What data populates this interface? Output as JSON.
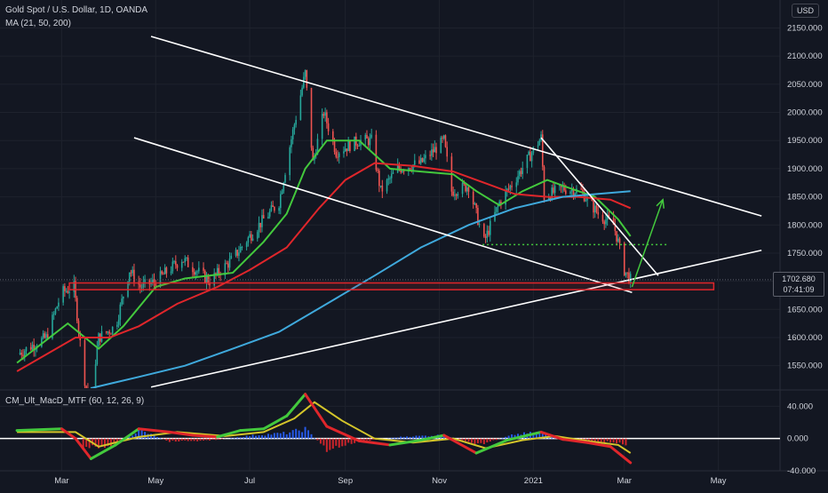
{
  "legend": {
    "symbol": "Gold Spot / U.S. Dollar, 1D, OANDA",
    "ma": "MA (21, 50, 200)",
    "macd": "CM_Ult_MacD_MTF (60, 12, 26, 9)"
  },
  "currency_button": "USD",
  "price_tag": {
    "price": "1702.680",
    "countdown": "07:41:09"
  },
  "colors": {
    "background": "#131722",
    "candle_up": "#26a69a",
    "candle_down": "#ef5350",
    "ma21": "#43c93d",
    "ma50": "#e0262b",
    "ma200": "#3fa9dc",
    "trendline": "#ffffff",
    "support_box": "#e0262b",
    "arrow": "#43c93d"
  },
  "chart_data": [
    {
      "type": "candlestick",
      "series": [
        {
          "name": "MA 21"
        },
        {
          "name": "MA 50"
        },
        {
          "name": "MA 200"
        }
      ],
      "x": [
        "Mar",
        "May",
        "Jul",
        "Sep",
        "Nov",
        "2021",
        "Mar",
        "May"
      ],
      "ylim": [
        1510,
        2165
      ],
      "yticks": [
        1550,
        1600,
        1650,
        1700,
        1750,
        1800,
        1850,
        1900,
        1950,
        2000,
        2050,
        2100,
        2150
      ],
      "ytick_labels": [
        "1550.000",
        "1600.000",
        "1650.000",
        "1700.000",
        "1750.000",
        "1800.000",
        "1850.000",
        "1900.000",
        "1950.000",
        "2000.000",
        "2050.000",
        "2100.000",
        "2150.000"
      ],
      "last_price": 1702.68,
      "price_path": [
        [
          "2020-02-01",
          1570
        ],
        [
          "2020-02-20",
          1600
        ],
        [
          "2020-03-01",
          1680
        ],
        [
          "2020-03-09",
          1690
        ],
        [
          "2020-03-15",
          1540
        ],
        [
          "2020-03-19",
          1480
        ],
        [
          "2020-03-25",
          1600
        ],
        [
          "2020-04-05",
          1620
        ],
        [
          "2020-04-14",
          1720
        ],
        [
          "2020-04-21",
          1690
        ],
        [
          "2020-05-01",
          1700
        ],
        [
          "2020-05-18",
          1740
        ],
        [
          "2020-06-05",
          1700
        ],
        [
          "2020-06-20",
          1740
        ],
        [
          "2020-07-01",
          1780
        ],
        [
          "2020-07-10",
          1810
        ],
        [
          "2020-07-20",
          1840
        ],
        [
          "2020-07-27",
          1940
        ],
        [
          "2020-08-06",
          2070
        ],
        [
          "2020-08-11",
          1910
        ],
        [
          "2020-08-18",
          2000
        ],
        [
          "2020-08-26",
          1930
        ],
        [
          "2020-09-10",
          1950
        ],
        [
          "2020-09-18",
          1950
        ],
        [
          "2020-09-24",
          1860
        ],
        [
          "2020-10-05",
          1900
        ],
        [
          "2020-10-20",
          1910
        ],
        [
          "2020-11-04",
          1950
        ],
        [
          "2020-11-09",
          1860
        ],
        [
          "2020-11-20",
          1870
        ],
        [
          "2020-11-30",
          1770
        ],
        [
          "2020-12-10",
          1840
        ],
        [
          "2020-12-20",
          1880
        ],
        [
          "2021-01-06",
          1955
        ],
        [
          "2021-01-08",
          1850
        ],
        [
          "2021-01-20",
          1865
        ],
        [
          "2021-02-01",
          1860
        ],
        [
          "2021-02-12",
          1820
        ],
        [
          "2021-02-22",
          1800
        ],
        [
          "2021-02-25",
          1770
        ],
        [
          "2021-03-01",
          1720
        ],
        [
          "2021-03-05",
          1702.68
        ]
      ],
      "moving_averages": [
        {
          "name": "MA 21",
          "color": "#43c93d",
          "points": [
            [
              "2020-02-01",
              1555
            ],
            [
              "2020-03-05",
              1625
            ],
            [
              "2020-03-25",
              1580
            ],
            [
              "2020-04-10",
              1620
            ],
            [
              "2020-05-01",
              1690
            ],
            [
              "2020-05-20",
              1705
            ],
            [
              "2020-06-20",
              1715
            ],
            [
              "2020-07-10",
              1770
            ],
            [
              "2020-07-25",
              1820
            ],
            [
              "2020-08-06",
              1900
            ],
            [
              "2020-08-20",
              1950
            ],
            [
              "2020-09-10",
              1950
            ],
            [
              "2020-09-30",
              1900
            ],
            [
              "2020-10-20",
              1895
            ],
            [
              "2020-11-10",
              1890
            ],
            [
              "2020-11-25",
              1860
            ],
            [
              "2020-12-10",
              1835
            ],
            [
              "2020-12-25",
              1860
            ],
            [
              "2021-01-10",
              1880
            ],
            [
              "2021-01-25",
              1865
            ],
            [
              "2021-02-10",
              1850
            ],
            [
              "2021-02-25",
              1810
            ],
            [
              "2021-03-05",
              1780
            ]
          ]
        },
        {
          "name": "MA 50",
          "color": "#e0262b",
          "points": [
            [
              "2020-02-01",
              1540
            ],
            [
              "2020-03-10",
              1600
            ],
            [
              "2020-04-01",
              1600
            ],
            [
              "2020-04-20",
              1620
            ],
            [
              "2020-05-15",
              1660
            ],
            [
              "2020-06-10",
              1690
            ],
            [
              "2020-07-01",
              1720
            ],
            [
              "2020-07-25",
              1760
            ],
            [
              "2020-08-15",
              1830
            ],
            [
              "2020-09-01",
              1880
            ],
            [
              "2020-09-20",
              1910
            ],
            [
              "2020-10-15",
              1905
            ],
            [
              "2020-11-10",
              1895
            ],
            [
              "2020-11-30",
              1875
            ],
            [
              "2020-12-20",
              1855
            ],
            [
              "2021-01-10",
              1850
            ],
            [
              "2021-01-30",
              1850
            ],
            [
              "2021-02-20",
              1845
            ],
            [
              "2021-03-05",
              1830
            ]
          ]
        },
        {
          "name": "MA 200",
          "color": "#3fa9dc",
          "points": [
            [
              "2020-03-20",
              1510
            ],
            [
              "2020-04-20",
              1530
            ],
            [
              "2020-05-20",
              1550
            ],
            [
              "2020-06-20",
              1580
            ],
            [
              "2020-07-20",
              1610
            ],
            [
              "2020-08-20",
              1660
            ],
            [
              "2020-09-20",
              1710
            ],
            [
              "2020-10-20",
              1760
            ],
            [
              "2020-11-20",
              1800
            ],
            [
              "2020-12-20",
              1830
            ],
            [
              "2021-01-20",
              1850
            ],
            [
              "2021-02-20",
              1857
            ],
            [
              "2021-03-05",
              1860
            ]
          ]
        }
      ],
      "drawings": {
        "trendlines": [
          [
            [
              "2020-04-28",
              2135
            ],
            [
              "2021-05-29",
              1816
            ]
          ],
          [
            [
              "2020-04-17",
              1955
            ],
            [
              "2021-03-06",
              1680
            ]
          ],
          [
            [
              "2020-04-28",
              1512
            ],
            [
              "2021-05-29",
              1755
            ]
          ],
          [
            [
              "2021-01-06",
              1955
            ],
            [
              "2021-03-23",
              1710
            ]
          ]
        ],
        "support_zone": [
          [
            "2020-03-06",
            1685
          ],
          [
            "2021-04-28",
            1697
          ]
        ],
        "dotted_level": [
          [
            "2020-11-29",
            1765
          ],
          [
            "2021-03-29",
            1765
          ]
        ],
        "arrow": [
          [
            "2021-03-06",
            1690
          ],
          [
            "2021-03-26",
            1845
          ]
        ]
      }
    },
    {
      "type": "bar",
      "series": [
        {
          "name": "MACD"
        },
        {
          "name": "Signal"
        },
        {
          "name": "Histogram"
        }
      ],
      "ylim": [
        -40,
        58
      ],
      "yticks": [
        -40,
        0,
        40
      ],
      "ytick_labels": [
        "-40.000",
        "0.000",
        "40.000"
      ],
      "macd_line": [
        [
          "2020-02-01",
          10
        ],
        [
          "2020-03-01",
          12
        ],
        [
          "2020-03-10",
          0
        ],
        [
          "2020-03-20",
          -25
        ],
        [
          "2020-04-05",
          -8
        ],
        [
          "2020-04-20",
          12
        ],
        [
          "2020-05-10",
          8
        ],
        [
          "2020-05-25",
          4
        ],
        [
          "2020-06-10",
          2
        ],
        [
          "2020-06-25",
          10
        ],
        [
          "2020-07-10",
          12
        ],
        [
          "2020-07-25",
          28
        ],
        [
          "2020-08-06",
          55
        ],
        [
          "2020-08-20",
          15
        ],
        [
          "2020-09-10",
          -3
        ],
        [
          "2020-09-30",
          -8
        ],
        [
          "2020-10-20",
          -2
        ],
        [
          "2020-11-04",
          4
        ],
        [
          "2020-11-25",
          -18
        ],
        [
          "2020-12-15",
          -2
        ],
        [
          "2021-01-06",
          8
        ],
        [
          "2021-01-20",
          -1
        ],
        [
          "2021-02-05",
          -5
        ],
        [
          "2021-02-20",
          -10
        ],
        [
          "2021-03-05",
          -30
        ]
      ],
      "signal_line": [
        [
          "2020-02-01",
          8
        ],
        [
          "2020-03-10",
          8
        ],
        [
          "2020-03-25",
          -10
        ],
        [
          "2020-04-20",
          2
        ],
        [
          "2020-05-15",
          8
        ],
        [
          "2020-06-15",
          3
        ],
        [
          "2020-07-10",
          8
        ],
        [
          "2020-07-30",
          25
        ],
        [
          "2020-08-12",
          45
        ],
        [
          "2020-08-30",
          22
        ],
        [
          "2020-09-20",
          0
        ],
        [
          "2020-10-15",
          -5
        ],
        [
          "2020-11-10",
          0
        ],
        [
          "2020-12-01",
          -12
        ],
        [
          "2020-12-25",
          -2
        ],
        [
          "2021-01-15",
          3
        ],
        [
          "2021-02-05",
          -3
        ],
        [
          "2021-02-25",
          -8
        ],
        [
          "2021-03-05",
          -18
        ]
      ],
      "histogram": [
        [
          "2020-03-15",
          -12
        ],
        [
          "2020-04-05",
          -10
        ],
        [
          "2020-04-20",
          12
        ],
        [
          "2020-05-10",
          -4
        ],
        [
          "2020-06-05",
          -3
        ],
        [
          "2020-07-05",
          5
        ],
        [
          "2020-07-25",
          8
        ],
        [
          "2020-08-06",
          14
        ],
        [
          "2020-08-20",
          -16
        ],
        [
          "2020-09-10",
          -4
        ],
        [
          "2020-10-10",
          3
        ],
        [
          "2020-11-05",
          5
        ],
        [
          "2020-11-25",
          -10
        ],
        [
          "2020-12-20",
          6
        ],
        [
          "2021-01-06",
          9
        ],
        [
          "2021-01-25",
          -4
        ],
        [
          "2021-02-15",
          -5
        ],
        [
          "2021-03-02",
          -8
        ]
      ]
    }
  ]
}
